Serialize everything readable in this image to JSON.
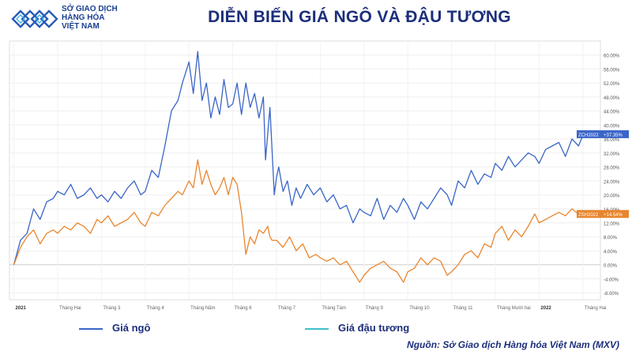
{
  "header": {
    "logo_lines": [
      "SỞ GIAO DỊCH",
      "HÀNG HÓA",
      "VIỆT NAM"
    ],
    "title": "DIỄN BIẾN GIÁ NGÔ VÀ ĐẬU TƯƠNG"
  },
  "legend": {
    "corn": "Giá ngô",
    "soy": "Giá đậu tương"
  },
  "source": "Nguồn: Sở Giao dịch Hàng hóa Việt Nam (MXV)",
  "colors": {
    "corn": "#3a65c8",
    "soy": "#e8862e",
    "legend_soy": "#3cc0c8",
    "title": "#1c2f7a"
  },
  "chart_data": {
    "type": "line",
    "ylim": [
      -10,
      64
    ],
    "y_ticks": [
      "-8.00%",
      "-4.00%",
      "0.00%",
      "4.00%",
      "8.00%",
      "12.00%",
      "16.00%",
      "20.00%",
      "24.00%",
      "28.00%",
      "32.00%",
      "36.00%",
      "40.00%",
      "44.00%",
      "48.00%",
      "52.00%",
      "56.00%",
      "60.00%"
    ],
    "y_tick_values": [
      -8,
      -4,
      0,
      4,
      8,
      12,
      16,
      20,
      24,
      28,
      32,
      36,
      40,
      44,
      48,
      52,
      56,
      60
    ],
    "x_ticks": [
      "2021",
      "Tháng Hai",
      "Tháng 3",
      "Tháng 4",
      "Tháng Năm",
      "Tháng 6",
      "Tháng 7",
      "Tháng Tám",
      "Tháng 9",
      "Tháng 10",
      "Tháng 11",
      "Tháng Mười hai",
      "2022",
      "Tháng Hai"
    ],
    "x_tick_months": [
      0,
      1,
      2,
      3,
      4,
      5,
      6,
      7,
      8,
      9,
      10,
      11,
      12,
      13
    ],
    "xlim": [
      -0.1,
      13.4
    ],
    "grid": true,
    "series": [
      {
        "name": "ZCH2022",
        "end_label": "ZCH2022",
        "end_value_label": "+37.35%",
        "x": [
          0,
          0.15,
          0.3,
          0.45,
          0.6,
          0.75,
          0.9,
          1.0,
          1.15,
          1.3,
          1.45,
          1.6,
          1.75,
          1.9,
          2.0,
          2.15,
          2.3,
          2.45,
          2.6,
          2.75,
          2.9,
          3.0,
          3.15,
          3.3,
          3.45,
          3.6,
          3.75,
          3.85,
          4.0,
          4.1,
          4.2,
          4.3,
          4.4,
          4.5,
          4.6,
          4.7,
          4.8,
          4.9,
          5.0,
          5.1,
          5.2,
          5.3,
          5.4,
          5.5,
          5.6,
          5.7,
          5.75,
          5.85,
          5.95,
          6.0,
          6.05,
          6.15,
          6.25,
          6.35,
          6.45,
          6.55,
          6.7,
          6.85,
          7.0,
          7.15,
          7.3,
          7.45,
          7.6,
          7.75,
          7.9,
          8.0,
          8.15,
          8.3,
          8.45,
          8.6,
          8.75,
          8.9,
          9.0,
          9.15,
          9.3,
          9.45,
          9.6,
          9.75,
          9.9,
          10.0,
          10.15,
          10.3,
          10.45,
          10.6,
          10.75,
          10.9,
          11.0,
          11.15,
          11.3,
          11.45,
          11.6,
          11.75,
          11.9,
          12.0,
          12.15,
          12.3,
          12.45,
          12.6,
          12.75,
          12.9,
          13.0,
          13.15
        ],
        "values": [
          0,
          7,
          9,
          16,
          13,
          18,
          19,
          21,
          20,
          23,
          19,
          20,
          22,
          19,
          20,
          18,
          21,
          19,
          22,
          24,
          20,
          21,
          27,
          25,
          34,
          44,
          47,
          52,
          58,
          49,
          61,
          47,
          52,
          42,
          48,
          43,
          53,
          45,
          46,
          52,
          43,
          52,
          45,
          49,
          42,
          48,
          30,
          45,
          20,
          25,
          28,
          21,
          24,
          17,
          22,
          19,
          23,
          20,
          22,
          18,
          20,
          16,
          17,
          12,
          16,
          15,
          14,
          19,
          13,
          17,
          15,
          19,
          17,
          13,
          18,
          16,
          19,
          22,
          20,
          17,
          24,
          22,
          27,
          23,
          26,
          25,
          29,
          27,
          31,
          28,
          30,
          32,
          31,
          29,
          33,
          34,
          35,
          31,
          36,
          34,
          37,
          37.35
        ]
      },
      {
        "name": "ZSH2022",
        "end_label": "ZSH2022",
        "end_value_label": "+14.54%",
        "x": [
          0,
          0.15,
          0.3,
          0.45,
          0.6,
          0.75,
          0.9,
          1.0,
          1.15,
          1.3,
          1.45,
          1.6,
          1.75,
          1.9,
          2.0,
          2.15,
          2.3,
          2.45,
          2.6,
          2.75,
          2.9,
          3.0,
          3.15,
          3.3,
          3.45,
          3.6,
          3.75,
          3.85,
          4.0,
          4.1,
          4.2,
          4.3,
          4.4,
          4.5,
          4.6,
          4.7,
          4.8,
          4.9,
          5.0,
          5.1,
          5.2,
          5.3,
          5.4,
          5.5,
          5.6,
          5.7,
          5.8,
          5.85,
          5.9,
          6.0,
          6.15,
          6.3,
          6.45,
          6.6,
          6.75,
          6.9,
          7.0,
          7.15,
          7.3,
          7.45,
          7.6,
          7.75,
          7.9,
          8.0,
          8.15,
          8.3,
          8.45,
          8.6,
          8.75,
          8.9,
          9.0,
          9.15,
          9.3,
          9.45,
          9.6,
          9.75,
          9.9,
          10.0,
          10.15,
          10.3,
          10.45,
          10.6,
          10.75,
          10.9,
          11.0,
          11.15,
          11.3,
          11.45,
          11.6,
          11.75,
          11.9,
          12.0,
          12.15,
          12.3,
          12.45,
          12.6,
          12.75,
          12.9,
          13.0,
          13.15
        ],
        "values": [
          0,
          5,
          8,
          10,
          6,
          9,
          10,
          9,
          11,
          10,
          12,
          11,
          9,
          13,
          12,
          14,
          11,
          12,
          13,
          15,
          12,
          11,
          15,
          14,
          17,
          19,
          21,
          20,
          24,
          22,
          30,
          23,
          27,
          23,
          20,
          22,
          25,
          20,
          25,
          23,
          15,
          3,
          8,
          6,
          10,
          9,
          11,
          8,
          7,
          7,
          5,
          8,
          4,
          6,
          2,
          3,
          2,
          1,
          2,
          0,
          1,
          -2,
          -5,
          -3,
          -1,
          0,
          1,
          -1,
          -2,
          -5,
          -2,
          -1,
          2,
          0,
          2,
          1,
          -3,
          -2,
          0,
          3,
          4,
          2,
          6,
          5,
          9,
          11,
          7,
          10,
          8,
          11,
          14.54,
          12,
          13,
          14,
          15,
          14,
          16,
          14.5,
          14.54,
          14.54
        ]
      }
    ]
  }
}
